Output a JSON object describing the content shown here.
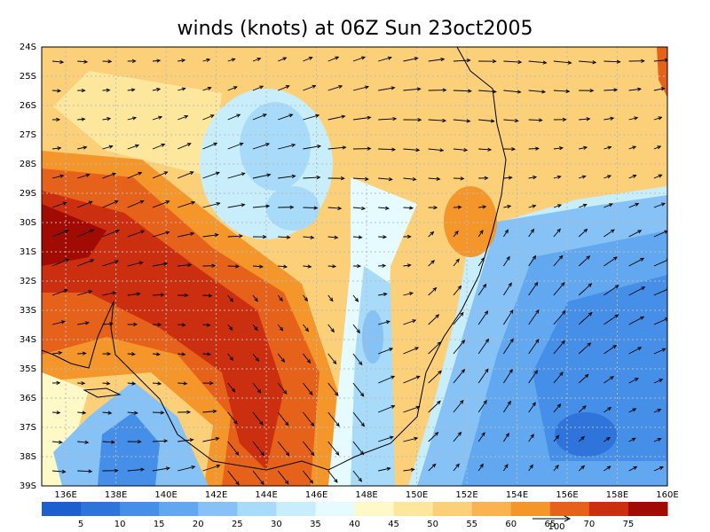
{
  "title": "winds (knots) at 06Z Sun 23oct2005",
  "map": {
    "lat_labels": [
      "24S",
      "25S",
      "26S",
      "27S",
      "28S",
      "29S",
      "30S",
      "31S",
      "32S",
      "33S",
      "34S",
      "35S",
      "36S",
      "37S",
      "38S",
      "39S"
    ],
    "lon_labels": [
      "136E",
      "138E",
      "140E",
      "142E",
      "144E",
      "146E",
      "148E",
      "150E",
      "152E",
      "154E",
      "156E",
      "158E",
      "160E"
    ]
  },
  "colorbar": {
    "labels": [
      "5",
      "10",
      "15",
      "20",
      "25",
      "30",
      "35",
      "40",
      "45",
      "50",
      "55",
      "60",
      "65",
      "70",
      "75"
    ],
    "colors": [
      "#1e5fcf",
      "#2e74db",
      "#468fe8",
      "#62a8f0",
      "#86c2f6",
      "#a8daf9",
      "#c8eefc",
      "#e6fbff",
      "#fff9c8",
      "#fde79d",
      "#fbd078",
      "#f9b451",
      "#f4962a",
      "#e6621a",
      "#cc2e10",
      "#a20a04"
    ]
  },
  "reference_vector": "100"
}
